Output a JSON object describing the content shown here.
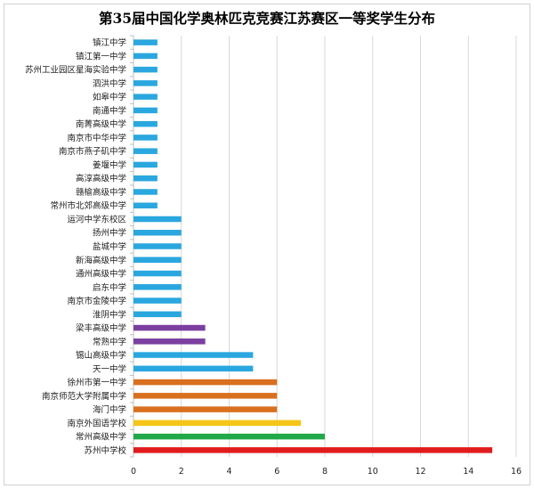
{
  "chart_data": {
    "type": "bar",
    "orientation": "horizontal",
    "title": "第35届中国化学奥林匹克竞赛江苏赛区一等奖学生分布",
    "xlabel": "",
    "ylabel": "",
    "xlim": [
      0,
      16
    ],
    "x_ticks": [
      0,
      2,
      4,
      6,
      8,
      10,
      12,
      14,
      16
    ],
    "grid": true,
    "legend": "none",
    "categories": [
      "镇江中学",
      "镇江第一中学",
      "苏州工业园区星海实验中学",
      "泗洪中学",
      "如皋中学",
      "南通中学",
      "南菁高级中学",
      "南京市中华中学",
      "南京市燕子矶中学",
      "姜堰中学",
      "高淳高级中学",
      "赣榆高级中学",
      "常州市北郊高级中学",
      "运河中学东校区",
      "扬州中学",
      "盐城中学",
      "新海高级中学",
      "通州高级中学",
      "启东中学",
      "南京市金陵中学",
      "淮阴中学",
      "梁丰高级中学",
      "常熟中学",
      "锡山高级中学",
      "天一中学",
      "徐州市第一中学",
      "南京师范大学附属中学",
      "海门中学",
      "南京外国语学校",
      "常州高级中学",
      "苏州中学校"
    ],
    "values": [
      1,
      1,
      1,
      1,
      1,
      1,
      1,
      1,
      1,
      1,
      1,
      1,
      1,
      2,
      2,
      2,
      2,
      2,
      2,
      2,
      2,
      3,
      3,
      5,
      5,
      6,
      6,
      6,
      7,
      8,
      15
    ],
    "colors": [
      "#2aa7df",
      "#2aa7df",
      "#2aa7df",
      "#2aa7df",
      "#2aa7df",
      "#2aa7df",
      "#2aa7df",
      "#2aa7df",
      "#2aa7df",
      "#2aa7df",
      "#2aa7df",
      "#2aa7df",
      "#2aa7df",
      "#2aa7df",
      "#2aa7df",
      "#2aa7df",
      "#2aa7df",
      "#2aa7df",
      "#2aa7df",
      "#2aa7df",
      "#2aa7df",
      "#7b3fa0",
      "#7b3fa0",
      "#2aa7df",
      "#2aa7df",
      "#d9701e",
      "#d9701e",
      "#d9701e",
      "#f5c518",
      "#21a848",
      "#e11c1c"
    ],
    "grid_color": "#d9d9d9",
    "axis_color": "#bfbfbf"
  }
}
